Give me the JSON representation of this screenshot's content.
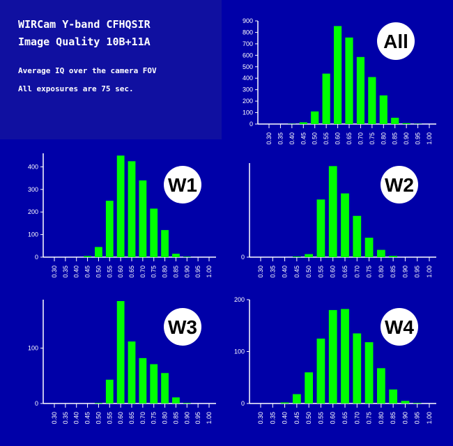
{
  "header": {
    "title_line1": "WIRCam Y-band CFHQSIR",
    "title_line2": "Image Quality 10B+11A",
    "note_line1": "Average IQ over the camera FOV",
    "note_line2": "All exposures are 75 sec."
  },
  "colors": {
    "background": "#0000a8",
    "panel_background": "#1010a0",
    "bar": "#00ff00",
    "axis": "#ffffff",
    "text": "#ffffff",
    "badge_fill": "#ffffff",
    "badge_text": "#000000"
  },
  "chart_data": [
    {
      "type": "bar",
      "badge": "All",
      "categories": [
        "0.30",
        "0.35",
        "0.40",
        "0.45",
        "0.50",
        "0.55",
        "0.60",
        "0.65",
        "0.70",
        "0.75",
        "0.80",
        "0.85",
        "0.90",
        "0.95",
        "1.00"
      ],
      "values": [
        0,
        0,
        2,
        15,
        110,
        440,
        855,
        755,
        585,
        410,
        250,
        55,
        8,
        2,
        0
      ],
      "ylim": [
        0,
        900
      ],
      "yticks": [
        0,
        100,
        200,
        300,
        400,
        500,
        600,
        700,
        800,
        900
      ]
    },
    {
      "type": "bar",
      "badge": "W1",
      "categories": [
        "0.30",
        "0.35",
        "0.40",
        "0.45",
        "0.50",
        "0.55",
        "0.60",
        "0.65",
        "0.70",
        "0.75",
        "0.80",
        "0.85",
        "0.90",
        "0.95",
        "1.00"
      ],
      "values": [
        0,
        0,
        0,
        5,
        45,
        250,
        450,
        425,
        340,
        215,
        120,
        15,
        2,
        0,
        0
      ],
      "ylim": [
        0,
        460
      ],
      "yticks": [
        0,
        100,
        200,
        300,
        400
      ]
    },
    {
      "type": "bar",
      "badge": "W2",
      "categories": [
        "0.30",
        "0.35",
        "0.40",
        "0.45",
        "0.50",
        "0.55",
        "0.60",
        "0.65",
        "0.70",
        "0.75",
        "0.80",
        "0.85",
        "0.90",
        "0.95",
        "1.00"
      ],
      "values": [
        0,
        0,
        0,
        1,
        5,
        95,
        150,
        105,
        68,
        32,
        12,
        2,
        0,
        0,
        0
      ],
      "ylim": [
        0,
        155
      ],
      "yticks": [
        0
      ]
    },
    {
      "type": "bar",
      "badge": "W3",
      "categories": [
        "0.30",
        "0.35",
        "0.40",
        "0.45",
        "0.50",
        "0.55",
        "0.60",
        "0.65",
        "0.70",
        "0.75",
        "0.80",
        "0.85",
        "0.90",
        "0.95",
        "1.00"
      ],
      "values": [
        0,
        0,
        0,
        0,
        1,
        43,
        185,
        112,
        82,
        71,
        55,
        11,
        1,
        0,
        0
      ],
      "ylim": [
        0,
        185
      ],
      "yticks": [
        0,
        100
      ]
    },
    {
      "type": "bar",
      "badge": "W4",
      "categories": [
        "0.30",
        "0.35",
        "0.40",
        "0.45",
        "0.50",
        "0.55",
        "0.60",
        "0.65",
        "0.70",
        "0.75",
        "0.80",
        "0.85",
        "0.90",
        "0.95",
        "1.00"
      ],
      "values": [
        0,
        0,
        2,
        18,
        60,
        125,
        180,
        182,
        135,
        118,
        68,
        27,
        5,
        1,
        0
      ],
      "ylim": [
        0,
        200
      ],
      "yticks": [
        0,
        100,
        200
      ]
    }
  ]
}
